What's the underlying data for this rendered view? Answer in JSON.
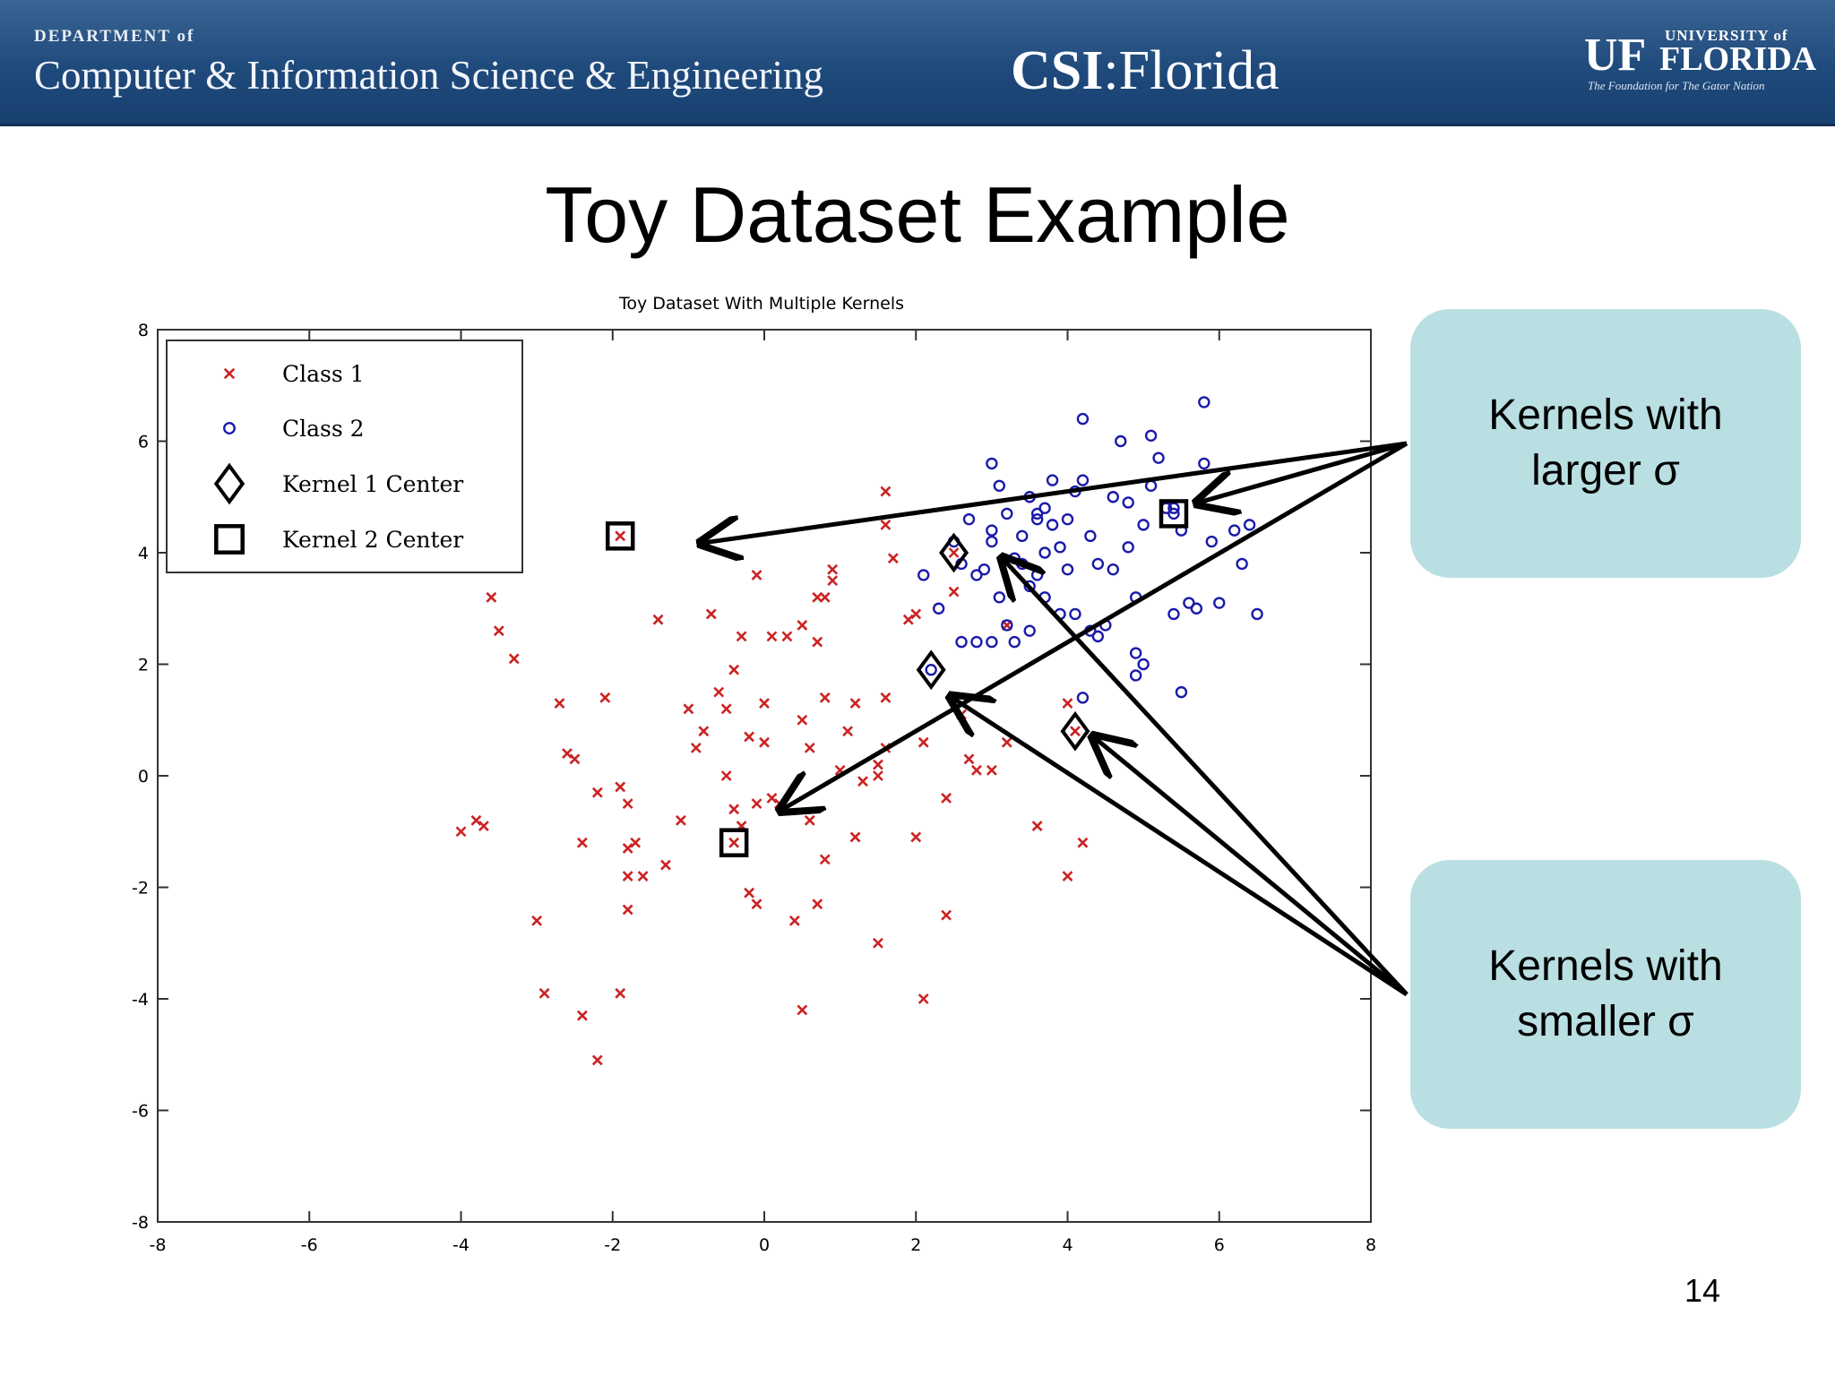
{
  "header": {
    "dept_small": "DEPARTMENT of",
    "dept_name": "Computer & Information Science & Engineering",
    "csi_bold": "CSI",
    "csi_rest": ":Florida",
    "logo_mark": "UF",
    "logo_univ": "UNIVERSITY of",
    "logo_florida": "FLORIDA",
    "logo_tagline": "The Foundation for The Gator Nation"
  },
  "slide": {
    "title": "Toy Dataset Example",
    "page_number": "14"
  },
  "callouts": {
    "larger": {
      "line1": "Kernels with",
      "line2": "larger σ"
    },
    "smaller": {
      "line1": "Kernels with",
      "line2": "smaller σ"
    }
  },
  "colors": {
    "class1": "#cc2222",
    "class2": "#1a1aaa",
    "callout_bg": "#b9dfe2",
    "header_bg": "#1f4a7c"
  },
  "chart_data": {
    "type": "scatter",
    "title": "Toy Dataset With Multiple Kernels",
    "xlim": [
      -8,
      8
    ],
    "ylim": [
      -8,
      8
    ],
    "xticks": [
      -8,
      -6,
      -4,
      -2,
      0,
      2,
      4,
      6,
      8
    ],
    "yticks": [
      -8,
      -6,
      -4,
      -2,
      0,
      2,
      4,
      6,
      8
    ],
    "grid": false,
    "legend_position": "top-left",
    "series": [
      {
        "name": "Class 1",
        "marker": "x",
        "points": [
          [
            -4.0,
            -1.0
          ],
          [
            -3.8,
            -0.8
          ],
          [
            -3.7,
            -0.9
          ],
          [
            -3.6,
            3.2
          ],
          [
            -3.5,
            2.6
          ],
          [
            -3.3,
            2.1
          ],
          [
            -3.0,
            -2.6
          ],
          [
            -2.9,
            -3.9
          ],
          [
            -2.7,
            1.3
          ],
          [
            -2.6,
            0.4
          ],
          [
            -2.5,
            0.3
          ],
          [
            -2.4,
            -1.2
          ],
          [
            -2.4,
            -4.3
          ],
          [
            -2.2,
            -0.3
          ],
          [
            -2.2,
            -5.1
          ],
          [
            -2.1,
            1.4
          ],
          [
            -1.9,
            -0.2
          ],
          [
            -1.8,
            -0.5
          ],
          [
            -1.8,
            -1.3
          ],
          [
            -1.8,
            -1.8
          ],
          [
            -1.8,
            -2.4
          ],
          [
            -1.9,
            -3.9
          ],
          [
            -1.7,
            -1.2
          ],
          [
            -1.6,
            -1.8
          ],
          [
            -1.4,
            2.8
          ],
          [
            -1.3,
            -1.6
          ],
          [
            -1.1,
            -0.8
          ],
          [
            -1.0,
            1.2
          ],
          [
            -0.9,
            0.5
          ],
          [
            -0.8,
            0.8
          ],
          [
            -0.7,
            2.9
          ],
          [
            -0.6,
            1.5
          ],
          [
            -0.5,
            1.2
          ],
          [
            -0.5,
            0.0
          ],
          [
            -0.4,
            1.9
          ],
          [
            -0.4,
            -0.6
          ],
          [
            -0.3,
            -0.9
          ],
          [
            -0.3,
            2.5
          ],
          [
            -0.2,
            0.7
          ],
          [
            -0.1,
            -0.5
          ],
          [
            -0.2,
            -2.1
          ],
          [
            -0.1,
            -2.3
          ],
          [
            0.0,
            0.6
          ],
          [
            0.0,
            1.3
          ],
          [
            0.1,
            -0.4
          ],
          [
            0.2,
            -0.5
          ],
          [
            0.1,
            2.5
          ],
          [
            0.3,
            2.5
          ],
          [
            0.4,
            -2.6
          ],
          [
            0.5,
            1.0
          ],
          [
            0.5,
            -4.2
          ],
          [
            0.6,
            -0.8
          ],
          [
            0.5,
            2.7
          ],
          [
            0.7,
            3.2
          ],
          [
            0.8,
            3.2
          ],
          [
            0.7,
            2.4
          ],
          [
            0.8,
            1.4
          ],
          [
            0.8,
            -1.5
          ],
          [
            0.9,
            3.5
          ],
          [
            0.9,
            3.7
          ],
          [
            0.6,
            0.5
          ],
          [
            0.7,
            -2.3
          ],
          [
            -0.1,
            3.6
          ],
          [
            1.0,
            0.1
          ],
          [
            1.1,
            0.8
          ],
          [
            1.2,
            -1.1
          ],
          [
            1.2,
            1.3
          ],
          [
            1.3,
            -0.1
          ],
          [
            1.5,
            -3.0
          ],
          [
            1.5,
            0.2
          ],
          [
            1.5,
            0.0
          ],
          [
            1.6,
            0.5
          ],
          [
            1.6,
            1.4
          ],
          [
            1.6,
            4.5
          ],
          [
            1.6,
            5.1
          ],
          [
            1.7,
            3.9
          ],
          [
            1.9,
            2.8
          ],
          [
            2.0,
            -1.1
          ],
          [
            2.0,
            2.9
          ],
          [
            2.1,
            0.6
          ],
          [
            2.1,
            -4.0
          ],
          [
            2.4,
            -2.5
          ],
          [
            2.5,
            3.3
          ],
          [
            2.6,
            1.1
          ],
          [
            2.7,
            0.3
          ],
          [
            2.8,
            0.1
          ],
          [
            3.0,
            0.1
          ],
          [
            3.2,
            0.6
          ],
          [
            3.2,
            2.7
          ],
          [
            3.6,
            -0.9
          ],
          [
            4.0,
            1.3
          ],
          [
            4.0,
            -1.8
          ],
          [
            4.1,
            0.8
          ],
          [
            4.2,
            -1.2
          ],
          [
            2.4,
            -0.4
          ],
          [
            -1.9,
            4.3
          ],
          [
            -0.4,
            -1.2
          ],
          [
            2.5,
            4.0
          ]
        ]
      },
      {
        "name": "Class 2",
        "marker": "o",
        "points": [
          [
            2.1,
            3.6
          ],
          [
            2.3,
            3.0
          ],
          [
            2.5,
            4.2
          ],
          [
            2.6,
            3.8
          ],
          [
            2.6,
            2.4
          ],
          [
            2.7,
            4.6
          ],
          [
            2.8,
            2.4
          ],
          [
            2.8,
            3.6
          ],
          [
            2.9,
            3.7
          ],
          [
            3.0,
            4.2
          ],
          [
            3.0,
            5.6
          ],
          [
            3.0,
            2.4
          ],
          [
            3.1,
            5.2
          ],
          [
            3.1,
            3.2
          ],
          [
            3.2,
            4.7
          ],
          [
            3.2,
            2.7
          ],
          [
            3.3,
            3.9
          ],
          [
            3.3,
            2.4
          ],
          [
            3.4,
            4.3
          ],
          [
            3.4,
            3.8
          ],
          [
            3.5,
            2.6
          ],
          [
            3.5,
            3.4
          ],
          [
            3.5,
            5.0
          ],
          [
            3.6,
            4.6
          ],
          [
            3.6,
            3.6
          ],
          [
            3.7,
            4.0
          ],
          [
            3.7,
            3.2
          ],
          [
            3.8,
            5.3
          ],
          [
            3.8,
            4.5
          ],
          [
            3.9,
            4.1
          ],
          [
            3.9,
            2.9
          ],
          [
            4.0,
            3.7
          ],
          [
            4.0,
            4.6
          ],
          [
            4.1,
            5.1
          ],
          [
            4.1,
            2.9
          ],
          [
            4.2,
            6.4
          ],
          [
            4.2,
            5.3
          ],
          [
            4.3,
            4.3
          ],
          [
            4.3,
            2.6
          ],
          [
            4.4,
            3.8
          ],
          [
            4.5,
            2.7
          ],
          [
            4.6,
            5.0
          ],
          [
            4.6,
            3.7
          ],
          [
            4.7,
            6.0
          ],
          [
            4.8,
            4.9
          ],
          [
            4.8,
            4.1
          ],
          [
            4.9,
            3.2
          ],
          [
            4.9,
            1.8
          ],
          [
            5.0,
            2.0
          ],
          [
            5.0,
            4.5
          ],
          [
            5.1,
            5.2
          ],
          [
            5.1,
            6.1
          ],
          [
            5.2,
            5.7
          ],
          [
            5.3,
            4.8
          ],
          [
            5.4,
            2.9
          ],
          [
            5.5,
            4.4
          ],
          [
            5.5,
            1.5
          ],
          [
            5.6,
            3.1
          ],
          [
            5.7,
            3.0
          ],
          [
            5.8,
            6.7
          ],
          [
            5.8,
            5.6
          ],
          [
            5.9,
            4.2
          ],
          [
            6.0,
            3.1
          ],
          [
            6.2,
            4.4
          ],
          [
            6.3,
            3.8
          ],
          [
            6.4,
            4.5
          ],
          [
            6.5,
            2.9
          ],
          [
            4.2,
            1.4
          ],
          [
            3.6,
            4.7
          ],
          [
            3.0,
            4.4
          ],
          [
            4.4,
            2.5
          ],
          [
            4.9,
            2.2
          ],
          [
            5.4,
            4.8
          ],
          [
            3.7,
            4.8
          ],
          [
            2.2,
            1.9
          ],
          [
            5.4,
            4.7
          ]
        ]
      },
      {
        "name": "Kernel 1 Center",
        "marker": "diamond",
        "points": [
          [
            2.2,
            1.9
          ],
          [
            2.5,
            4.0
          ],
          [
            4.1,
            0.8
          ]
        ]
      },
      {
        "name": "Kernel 2 Center",
        "marker": "square",
        "points": [
          [
            -1.9,
            4.3
          ],
          [
            -0.4,
            -1.2
          ],
          [
            5.4,
            4.7
          ]
        ]
      }
    ]
  }
}
